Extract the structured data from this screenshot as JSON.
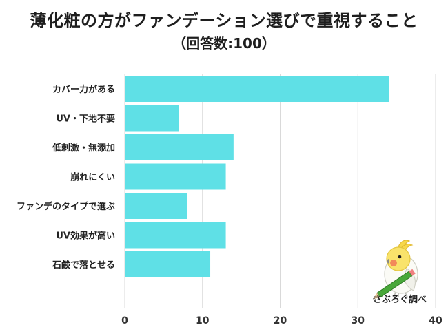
{
  "chart_data": {
    "type": "bar",
    "orientation": "horizontal",
    "title": "薄化粧の方がファンデーション選びで重視すること",
    "subtitle": "（回答数:100）",
    "categories": [
      "カバー力がある",
      "UV・下地不要",
      "低刺激・無添加",
      "崩れにくい",
      "ファンデのタイプで選ぶ",
      "UV効果が高い",
      "石鹸で落とせる"
    ],
    "values": [
      34,
      7,
      14,
      13,
      8,
      13,
      11
    ],
    "xlim": [
      0,
      40
    ],
    "xticks": [
      "0",
      "10",
      "20",
      "30",
      "40"
    ],
    "grid": true,
    "bar_color": "#5fe0e6",
    "grid_color": "#d9d9d9"
  },
  "brand": {
    "label": "さぶろぐ調べ",
    "icon": "cockatiel-mascot-icon"
  }
}
